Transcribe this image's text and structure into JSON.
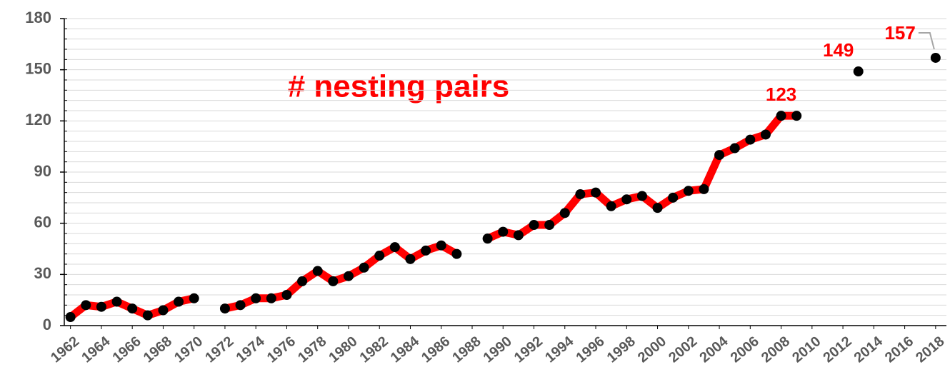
{
  "chart_data": {
    "type": "line",
    "title": "# nesting pairs",
    "x": [
      1962,
      1963,
      1964,
      1965,
      1966,
      1967,
      1968,
      1969,
      1970,
      1971,
      1972,
      1973,
      1974,
      1975,
      1976,
      1977,
      1978,
      1979,
      1980,
      1981,
      1982,
      1983,
      1984,
      1985,
      1986,
      1987,
      1988,
      1989,
      1990,
      1991,
      1992,
      1993,
      1994,
      1995,
      1996,
      1997,
      1998,
      1999,
      2000,
      2001,
      2002,
      2003,
      2004,
      2005,
      2006,
      2007,
      2008,
      2009,
      2010,
      2011,
      2012,
      2013,
      2014,
      2015,
      2016,
      2017,
      2018
    ],
    "series": [
      {
        "name": "# nesting pairs",
        "color": "#ff0000",
        "marker_color": "#000000",
        "values": [
          5,
          12,
          11,
          14,
          10,
          6,
          9,
          14,
          16,
          null,
          10,
          12,
          16,
          16,
          18,
          26,
          32,
          26,
          29,
          34,
          41,
          46,
          39,
          44,
          47,
          42,
          null,
          51,
          55,
          53,
          59,
          59,
          66,
          77,
          78,
          70,
          74,
          76,
          69,
          75,
          79,
          80,
          100,
          104,
          109,
          112,
          123,
          123,
          null,
          null,
          null,
          149,
          null,
          null,
          null,
          null,
          157
        ],
        "value_labels": [
          null,
          null,
          null,
          null,
          null,
          null,
          null,
          null,
          null,
          null,
          null,
          null,
          null,
          null,
          null,
          null,
          null,
          null,
          null,
          null,
          null,
          null,
          null,
          null,
          null,
          null,
          null,
          null,
          null,
          null,
          null,
          null,
          null,
          null,
          null,
          null,
          null,
          null,
          null,
          null,
          null,
          null,
          null,
          null,
          null,
          null,
          "123",
          null,
          null,
          null,
          null,
          "149",
          null,
          null,
          null,
          null,
          "157"
        ]
      }
    ],
    "xlim": [
      1961.6,
      2018.7
    ],
    "xticks": [
      1962,
      1964,
      1966,
      1968,
      1970,
      1972,
      1974,
      1976,
      1978,
      1980,
      1982,
      1984,
      1986,
      1988,
      1990,
      1992,
      1994,
      1996,
      1998,
      2000,
      2002,
      2004,
      2006,
      2008,
      2010,
      2012,
      2014,
      2016,
      2018
    ],
    "ylim": [
      0,
      180
    ],
    "yticks": [
      0,
      30,
      60,
      90,
      120,
      150,
      180
    ],
    "minor_yticks": [
      0,
      6,
      12,
      18,
      24,
      30,
      36,
      42,
      48,
      54,
      60,
      66,
      72,
      78,
      84,
      90,
      96,
      102,
      108,
      114,
      120,
      126,
      132,
      138,
      144,
      150,
      156,
      162,
      168,
      174,
      180
    ],
    "grid": true
  }
}
